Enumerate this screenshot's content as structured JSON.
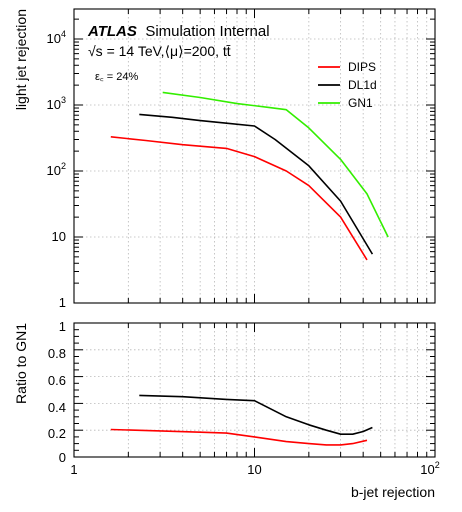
{
  "figure": {
    "atlas_label": "ATLAS",
    "atlas_suffix": "Simulation Internal",
    "process_label": "√s = 14 TeV,⟨μ⟩=200, tt̄",
    "efficiency_label": "ε꜀ = 24%"
  },
  "chart_data": [
    {
      "type": "line",
      "panel": "main",
      "xlabel": "b-jet rejection",
      "ylabel": "light jet rejection",
      "xscale": "log",
      "yscale": "log",
      "xlim": [
        1,
        100
      ],
      "ylim": [
        1,
        20000
      ],
      "x_tick_labels": [
        "1",
        "10",
        "10²"
      ],
      "y_tick_labels": [
        "1",
        "10",
        "10²",
        "10³",
        "10⁴"
      ],
      "grid": true,
      "legend_position": "top-right",
      "series": [
        {
          "name": "DIPS",
          "color": "#ff0000",
          "x": [
            1.6,
            2.5,
            4,
            7,
            10,
            15,
            20,
            30,
            42
          ],
          "y": [
            330,
            290,
            250,
            220,
            165,
            100,
            60,
            20,
            4.5
          ]
        },
        {
          "name": "DL1d",
          "color": "#000000",
          "x": [
            2.3,
            3.5,
            5,
            7,
            10,
            13,
            20,
            30,
            45
          ],
          "y": [
            720,
            650,
            580,
            530,
            480,
            300,
            120,
            35,
            5.5
          ]
        },
        {
          "name": "GN1",
          "color": "#33ee00",
          "x": [
            3.1,
            5,
            8,
            12,
            15,
            20,
            30,
            42,
            55
          ],
          "y": [
            1550,
            1300,
            1050,
            920,
            850,
            450,
            150,
            45,
            10
          ]
        }
      ]
    },
    {
      "type": "line",
      "panel": "ratio",
      "xlabel": "b-jet rejection",
      "ylabel": "Ratio to GN1",
      "xscale": "log",
      "xlim": [
        1,
        100
      ],
      "ylim": [
        0,
        1
      ],
      "x_tick_labels": [
        "1",
        "10",
        "10²"
      ],
      "y_tick_labels": [
        "0",
        "0.2",
        "0.4",
        "0.6",
        "0.8",
        "1"
      ],
      "grid": true,
      "series": [
        {
          "name": "DIPS",
          "color": "#ff0000",
          "x": [
            1.6,
            3,
            5,
            7,
            10,
            15,
            20,
            25,
            30,
            35,
            42
          ],
          "y": [
            0.205,
            0.195,
            0.185,
            0.178,
            0.15,
            0.115,
            0.1,
            0.09,
            0.09,
            0.1,
            0.125
          ]
        },
        {
          "name": "DL1d",
          "color": "#000000",
          "x": [
            2.3,
            4,
            7,
            10,
            15,
            20,
            25,
            30,
            35,
            40,
            45
          ],
          "y": [
            0.46,
            0.45,
            0.43,
            0.42,
            0.3,
            0.24,
            0.2,
            0.17,
            0.17,
            0.19,
            0.22
          ]
        }
      ]
    }
  ]
}
